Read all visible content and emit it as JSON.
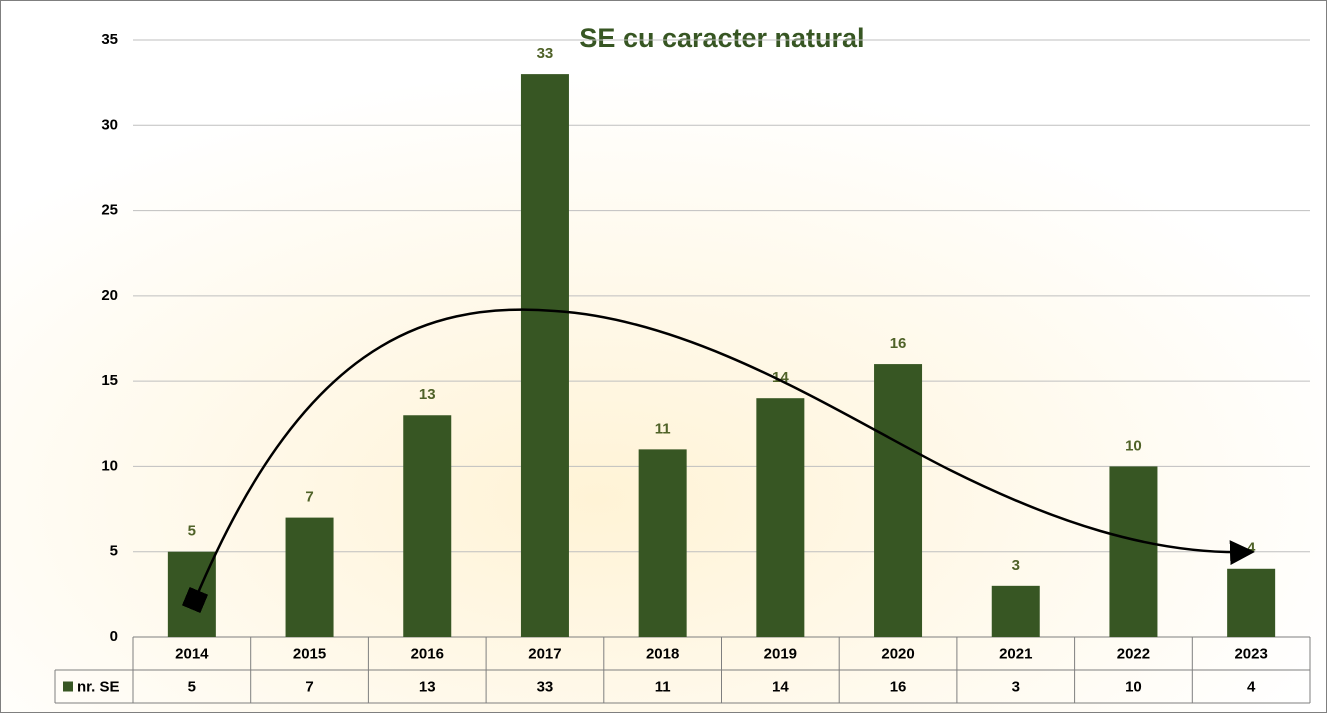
{
  "chart_data": {
    "type": "bar",
    "title": "SE cu caracter natural",
    "categories": [
      "2014",
      "2015",
      "2016",
      "2017",
      "2018",
      "2019",
      "2020",
      "2021",
      "2022",
      "2023"
    ],
    "series": [
      {
        "name": "nr. SE",
        "color": "#375623",
        "values": [
          5,
          7,
          13,
          33,
          11,
          14,
          16,
          3,
          10,
          4
        ]
      }
    ],
    "ylim": [
      0,
      35
    ],
    "yticks": [
      0,
      5,
      10,
      15,
      20,
      25,
      30,
      35
    ],
    "grid": true
  }
}
